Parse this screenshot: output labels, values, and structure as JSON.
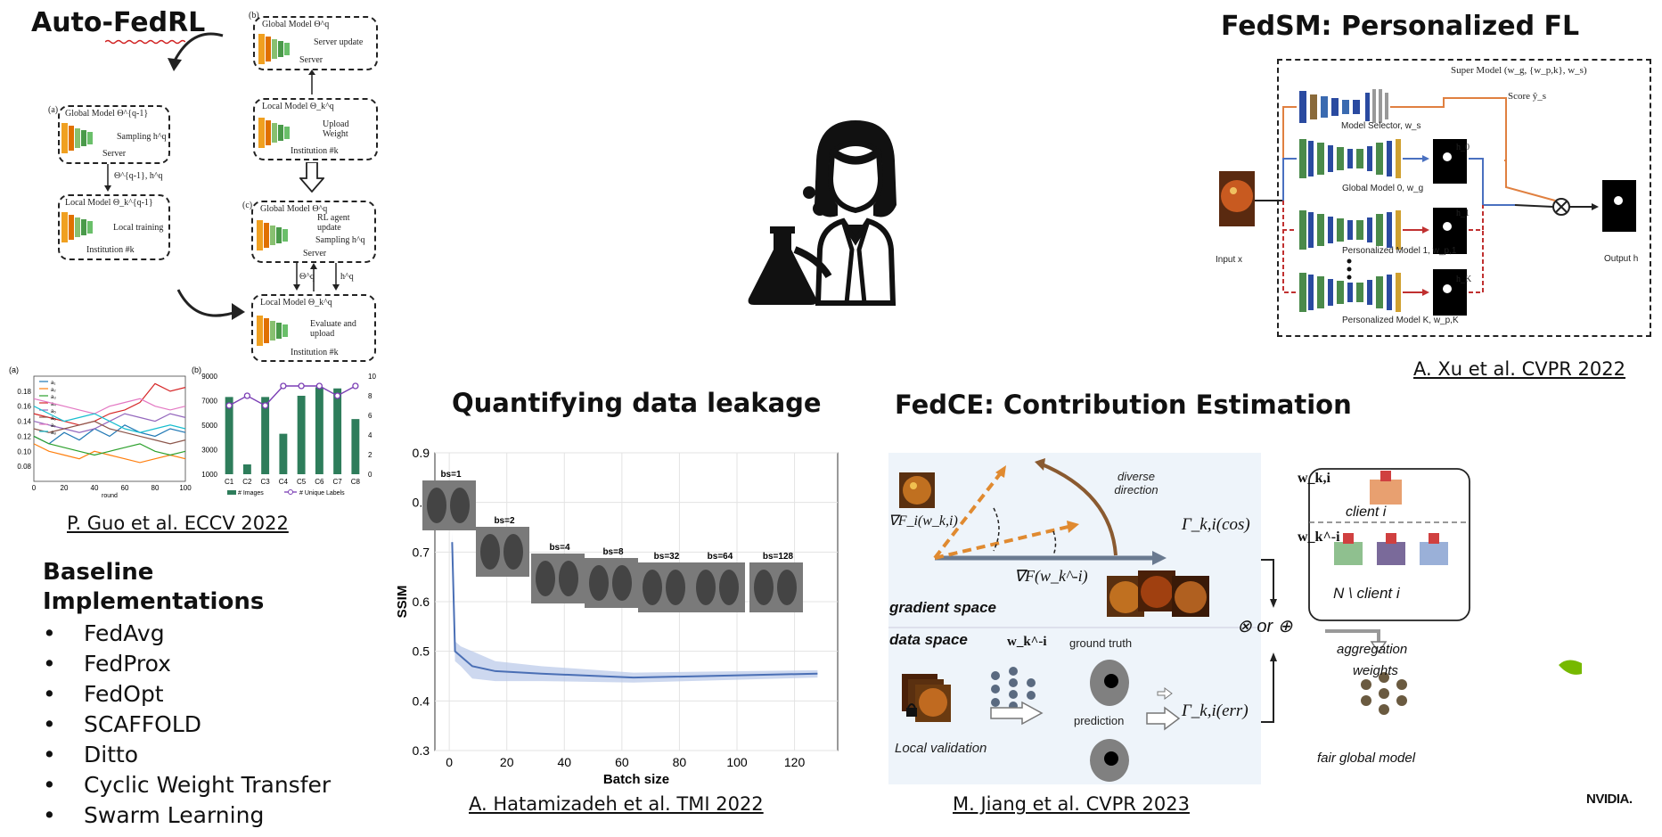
{
  "autofedrl": {
    "title": "Auto-FedRL",
    "citation": "P. Guo et al. ECCV 2022",
    "panel_b_top": "(b)",
    "global_model_top": "Global Model Θ^q",
    "server_update": "Server update",
    "server_top": "Server",
    "local_model_upload": "Local Model Θ_k^q",
    "upload_weight": "Upload Weight",
    "institution_k1": "Institution #k",
    "panel_a": "(a)",
    "global_model_a": "Global Model Θ^{q-1}",
    "sampling": "Sampling h^q",
    "server_a": "Server",
    "arrow_a_label": "Θ^{q-1}, h^q",
    "local_model_a": "Local Model Θ_k^{q-1}",
    "local_training": "Local training",
    "institution_k2": "Institution #k",
    "panel_c": "(c)",
    "global_model_c": "Global Model Θ^q",
    "rl_agent": "RL agent update",
    "sampling_c": "Sampling h^q",
    "server_c": "Server",
    "local_model_c": "Local Model Θ_k^q",
    "evaluate_upload": "Evaluate and upload",
    "institution_k3": "Institution #k",
    "arrow_theta": "Θ^q",
    "arrow_hq": "h^q"
  },
  "fedsm": {
    "title": "FedSM: Personalized FL",
    "citation": "A. Xu et al. CVPR 2022",
    "super_model": "Super Model (w_g, {w_p,k}, w_s)",
    "score": "Score ŷ_s",
    "model_selector": "Model Selector, w_s",
    "global_model_0": "Global Model 0, w_g",
    "personalized_1": "Personalized Model 1, w_p,1",
    "personalized_k": "Personalized Model K, w_p,K",
    "input_x": "Input x",
    "output_h": "Output h",
    "h0": "h_0",
    "h1": "h_1",
    "hk": "h_K"
  },
  "leakage": {
    "title": "Quantifying data leakage",
    "citation": "A. Hatamizadeh et al. TMI 2022",
    "thumb_labels": [
      "bs=1",
      "bs=2",
      "bs=4",
      "bs=8",
      "bs=32",
      "bs=64",
      "bs=128"
    ]
  },
  "fedce": {
    "title": "FedCE: Contribution Estimation",
    "citation": "M. Jiang et al. CVPR 2023",
    "diverse_direction": "diverse direction",
    "grad_fi": "∇F_i(w_k,i)",
    "grad_f": "∇F(w_k^-i)",
    "gradient_space": "gradient space",
    "data_space": "data space",
    "w_k_minus_i": "w_k^-i",
    "ground_truth": "ground truth",
    "prediction": "prediction",
    "local_validation": "Local validation",
    "gamma_cos": "Γ_k,i(cos)",
    "gamma_err": "Γ_k,i(err)",
    "w_k_i": "w_k,i",
    "client_i": "client i",
    "w_k_minus_i_box": "w_k^-i",
    "n_client_i": "N \\ client i",
    "combine": "⊗ or ⊕",
    "aggregation": "aggregation",
    "weights": "weights",
    "fair_global": "fair global model"
  },
  "baseline": {
    "title_line1": "Baseline",
    "title_line2": "Implementations",
    "items": [
      "FedAvg",
      "FedProx",
      "FedOpt",
      "SCAFFOLD",
      "Ditto",
      "Cyclic Weight Transfer",
      "Swarm Learning"
    ]
  },
  "logo": {
    "text": "NVIDIA."
  },
  "chart_data": [
    {
      "type": "line",
      "title": "",
      "panel": "(a)",
      "xlabel": "round",
      "ylabel": "",
      "xlim": [
        0,
        100
      ],
      "ylim": [
        0.06,
        0.2
      ],
      "xticks": [
        0,
        20,
        40,
        60,
        80,
        100
      ],
      "yticks": [
        0.08,
        0.1,
        0.12,
        0.14,
        0.16,
        0.18
      ],
      "series": [
        {
          "name": "a₁",
          "color": "#1f77b4",
          "x": [
            0,
            10,
            20,
            30,
            40,
            50,
            60,
            70,
            80,
            90,
            100
          ],
          "y": [
            0.12,
            0.11,
            0.125,
            0.115,
            0.13,
            0.12,
            0.135,
            0.125,
            0.12,
            0.13,
            0.125
          ]
        },
        {
          "name": "a₂",
          "color": "#ff7f0e",
          "x": [
            0,
            10,
            20,
            30,
            40,
            50,
            60,
            70,
            80,
            90,
            100
          ],
          "y": [
            0.11,
            0.1,
            0.095,
            0.09,
            0.1,
            0.095,
            0.09,
            0.085,
            0.09,
            0.095,
            0.09
          ]
        },
        {
          "name": "a₃",
          "color": "#2ca02c",
          "x": [
            0,
            10,
            20,
            30,
            40,
            50,
            60,
            70,
            80,
            90,
            100
          ],
          "y": [
            0.12,
            0.11,
            0.105,
            0.1,
            0.095,
            0.1,
            0.105,
            0.11,
            0.1,
            0.095,
            0.1
          ]
        },
        {
          "name": "a₄",
          "color": "#d62728",
          "x": [
            0,
            10,
            20,
            30,
            40,
            50,
            60,
            70,
            80,
            90,
            100
          ],
          "y": [
            0.15,
            0.145,
            0.14,
            0.135,
            0.14,
            0.15,
            0.155,
            0.165,
            0.19,
            0.18,
            0.185
          ]
        },
        {
          "name": "a₅",
          "color": "#9467bd",
          "x": [
            0,
            10,
            20,
            30,
            40,
            50,
            60,
            70,
            80,
            90,
            100
          ],
          "y": [
            0.14,
            0.135,
            0.13,
            0.125,
            0.13,
            0.14,
            0.15,
            0.145,
            0.14,
            0.15,
            0.145
          ]
        },
        {
          "name": "a₆",
          "color": "#8c564b",
          "x": [
            0,
            10,
            20,
            30,
            40,
            50,
            60,
            70,
            80,
            90,
            100
          ],
          "y": [
            0.13,
            0.125,
            0.13,
            0.135,
            0.14,
            0.13,
            0.125,
            0.12,
            0.115,
            0.11,
            0.115
          ]
        },
        {
          "name": "a₇",
          "color": "#e377c2",
          "x": [
            0,
            10,
            20,
            30,
            40,
            50,
            60,
            70,
            80,
            90,
            100
          ],
          "y": [
            0.17,
            0.165,
            0.16,
            0.155,
            0.15,
            0.16,
            0.165,
            0.17,
            0.16,
            0.155,
            0.16
          ]
        },
        {
          "name": "a₈",
          "color": "#17becf",
          "x": [
            0,
            10,
            20,
            30,
            40,
            50,
            60,
            70,
            80,
            90,
            100
          ],
          "y": [
            0.16,
            0.15,
            0.14,
            0.145,
            0.15,
            0.14,
            0.13,
            0.125,
            0.13,
            0.135,
            0.13
          ]
        }
      ]
    },
    {
      "type": "bar",
      "title": "",
      "panel": "(b)",
      "categories": [
        "C1",
        "C2",
        "C3",
        "C4",
        "C5",
        "C6",
        "C7",
        "C8"
      ],
      "series": [
        {
          "name": "# Images",
          "color": "#2e7d5b",
          "values": [
            7300,
            1800,
            7300,
            4300,
            7400,
            8100,
            8000,
            5500
          ],
          "axis": "left"
        },
        {
          "name": "# Unique Labels",
          "color": "#7b3fb5",
          "values": [
            7,
            8,
            7,
            9,
            9,
            9,
            8,
            9
          ],
          "axis": "right"
        }
      ],
      "ylim_left": [
        1000,
        9000
      ],
      "yticks_left": [
        1000,
        3000,
        5000,
        7000,
        9000
      ],
      "ylim_right": [
        0,
        10
      ],
      "yticks_right": [
        0,
        2,
        4,
        6,
        8,
        10
      ]
    },
    {
      "type": "line",
      "title": "",
      "xlabel": "Batch size",
      "ylabel": "SSIM",
      "xlim": [
        -5,
        135
      ],
      "ylim": [
        0.3,
        0.9
      ],
      "xticks": [
        0,
        20,
        40,
        60,
        80,
        100,
        120
      ],
      "yticks": [
        0.3,
        0.4,
        0.5,
        0.6,
        0.7,
        0.8,
        0.9
      ],
      "series": [
        {
          "name": "",
          "color": "#4a6fb5",
          "x": [
            1,
            2,
            4,
            8,
            16,
            32,
            64,
            128
          ],
          "y": [
            0.72,
            0.5,
            0.49,
            0.47,
            0.46,
            0.455,
            0.447,
            0.455
          ],
          "band_low": [
            0.7,
            0.48,
            0.47,
            0.445,
            0.44,
            0.44,
            0.437,
            0.447
          ],
          "band_high": [
            0.74,
            0.52,
            0.51,
            0.5,
            0.48,
            0.47,
            0.457,
            0.462
          ]
        }
      ]
    }
  ]
}
